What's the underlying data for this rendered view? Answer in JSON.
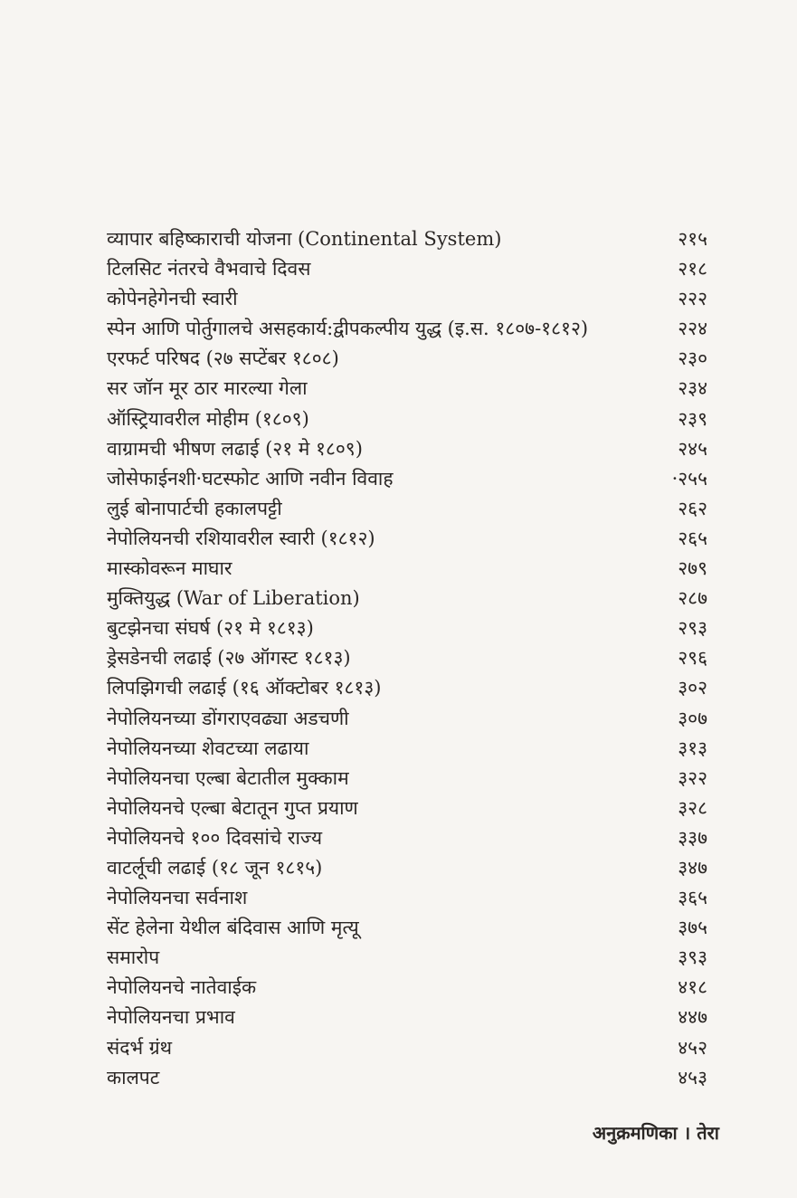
{
  "toc": {
    "entries": [
      {
        "title": "व्यापार बहिष्काराची योजना (Continental System)",
        "page": "२१५"
      },
      {
        "title": "टिलसिट नंतरचे वैभवाचे दिवस",
        "page": "२१८"
      },
      {
        "title": "कोपेनहेगेनची स्वारी",
        "page": "२२२"
      },
      {
        "title": "स्पेन आणि पोर्तुगालचे असहकार्य:द्वीपकल्पीय युद्ध (इ.स. १८०७-१८१२)",
        "page": "२२४"
      },
      {
        "title": "एरफर्ट परिषद (२७ सप्टेंबर १८०८)",
        "page": "२३०"
      },
      {
        "title": "सर जॉन मूर ठार मारल्या गेला",
        "page": "२३४"
      },
      {
        "title": "ऑस्ट्रियावरील मोहीम (१८०९)",
        "page": "२३९"
      },
      {
        "title": "वाग्रामची भीषण लढाई (२१ मे १८०९)",
        "page": "२४५"
      },
      {
        "title": "जोसेफाईनशी·घटस्फोट आणि नवीन विवाह",
        "page": "·२५५"
      },
      {
        "title": "लुई बोनापार्टची हकालपट्टी",
        "page": "२६२"
      },
      {
        "title": "नेपोलियनची रशियावरील स्वारी (१८१२)",
        "page": "२६५"
      },
      {
        "title": "मास्कोवरून माघार",
        "page": "२७९"
      },
      {
        "title": "मुक्तियुद्ध (War of Liberation)",
        "page": "२८७"
      },
      {
        "title": "बुटझेनचा संघर्ष (२१ मे १८१३)",
        "page": "२९३"
      },
      {
        "title": "ड्रेसडेनची लढाई (२७ ऑगस्ट १८१३)",
        "page": "२९६"
      },
      {
        "title": "लिपझिगची लढाई (१६ ऑक्टोबर १८१३)",
        "page": "३०२"
      },
      {
        "title": "नेपोलियनच्या डोंगराएवढ्या अडचणी",
        "page": "३०७"
      },
      {
        "title": "नेपोलियनच्या शेवटच्या लढाया",
        "page": "३१३"
      },
      {
        "title": "नेपोलियनचा एल्बा बेटातील मुक्काम",
        "page": "३२२"
      },
      {
        "title": "नेपोलियनचे एल्बा बेटातून गुप्त प्रयाण",
        "page": "३२८"
      },
      {
        "title": "नेपोलियनचे १०० दिवसांचे राज्य",
        "page": "३३७"
      },
      {
        "title": "वाटर्लूची लढाई (१८ जून १८१५)",
        "page": "३४७"
      },
      {
        "title": "नेपोलियनचा सर्वनाश",
        "page": "३६५"
      },
      {
        "title": "सेंट हेलेना येथील बंदिवास आणि मृत्यू",
        "page": "३७५"
      },
      {
        "title": "समारोप",
        "page": "३९३"
      },
      {
        "title": "नेपोलियनचे नातेवाईक",
        "page": "४१८"
      },
      {
        "title": "नेपोलियनचा प्रभाव",
        "page": "४४७"
      },
      {
        "title": "संदर्भ ग्रंथ",
        "page": "४५२"
      },
      {
        "title": "कालपट",
        "page": "४५३"
      }
    ]
  },
  "footer": {
    "text": "अनुक्रमणिका । तेरा"
  }
}
